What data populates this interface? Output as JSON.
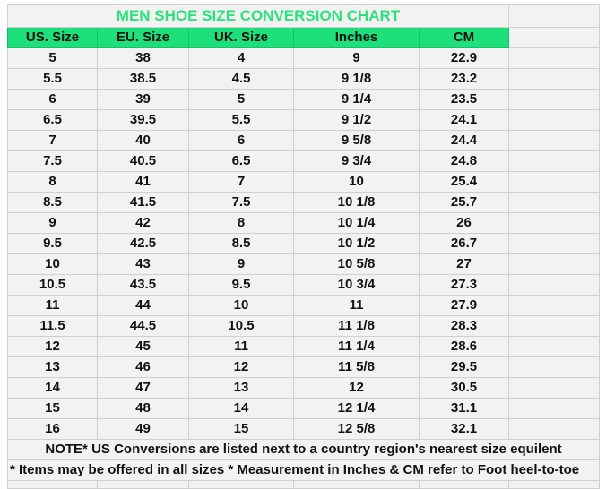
{
  "title": "MEN SHOE SIZE CONVERSION CHART",
  "columns": [
    "US. Size",
    "EU. Size",
    "UK. Size",
    "Inches",
    "CM"
  ],
  "rows": [
    [
      "5",
      "38",
      "4",
      "9",
      "22.9"
    ],
    [
      "5.5",
      "38.5",
      "4.5",
      "9 1/8",
      "23.2"
    ],
    [
      "6",
      "39",
      "5",
      "9 1/4",
      "23.5"
    ],
    [
      "6.5",
      "39.5",
      "5.5",
      "9 1/2",
      "24.1"
    ],
    [
      "7",
      "40",
      "6",
      "9 5/8",
      "24.4"
    ],
    [
      "7.5",
      "40.5",
      "6.5",
      "9 3/4",
      "24.8"
    ],
    [
      "8",
      "41",
      "7",
      "10",
      "25.4"
    ],
    [
      "8.5",
      "41.5",
      "7.5",
      "10 1/8",
      "25.7"
    ],
    [
      "9",
      "42",
      "8",
      "10 1/4",
      "26"
    ],
    [
      "9.5",
      "42.5",
      "8.5",
      "10 1/2",
      "26.7"
    ],
    [
      "10",
      "43",
      "9",
      "10 5/8",
      "27"
    ],
    [
      "10.5",
      "43.5",
      "9.5",
      "10 3/4",
      "27.3"
    ],
    [
      "11",
      "44",
      "10",
      "11",
      "27.9"
    ],
    [
      "11.5",
      "44.5",
      "10.5",
      "11 1/8",
      "28.3"
    ],
    [
      "12",
      "45",
      "11",
      "11 1/4",
      "28.6"
    ],
    [
      "13",
      "46",
      "12",
      "11 5/8",
      "29.5"
    ],
    [
      "14",
      "47",
      "13",
      "12",
      "30.5"
    ],
    [
      "15",
      "48",
      "14",
      "12 1/4",
      "31.1"
    ],
    [
      "16",
      "49",
      "15",
      "12 5/8",
      "32.1"
    ]
  ],
  "notes": [
    "NOTE* US Conversions are listed next to a country region's nearest size equilent",
    "* Items may be offered in all sizes * Measurement in Inches & CM refer to Foot heel-to-toe"
  ],
  "colors": {
    "header_bg": "#1ee07a",
    "title_text": "#2de27c",
    "cell_bg": "#f2f2f2"
  }
}
